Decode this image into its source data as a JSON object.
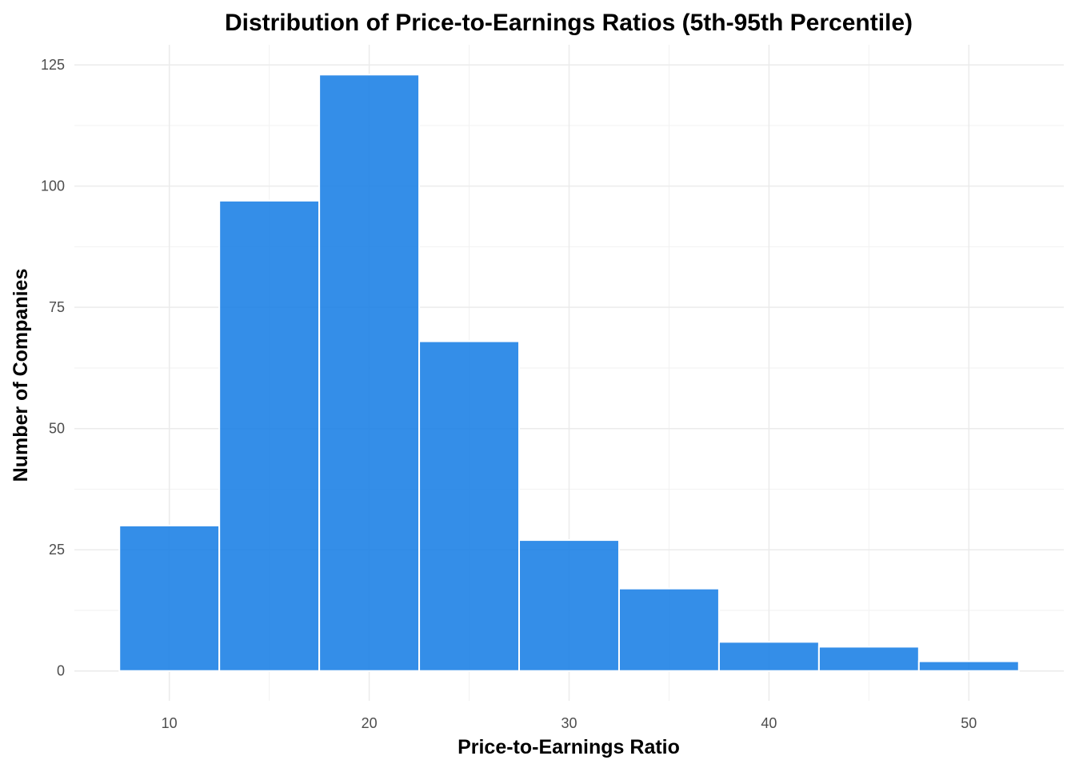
{
  "chart_data": {
    "type": "bar",
    "title": "Distribution of Price-to-Earnings Ratios (5th-95th Percentile)",
    "xlabel": "Price-to-Earnings Ratio",
    "ylabel": "Number of Companies",
    "bin_width": 5,
    "bin_centers": [
      10,
      15,
      20,
      25,
      30,
      35,
      40,
      45,
      50
    ],
    "values": [
      30,
      97,
      123,
      68,
      27,
      17,
      6,
      5,
      2
    ],
    "xlim": [
      5.25,
      54.75
    ],
    "ylim": [
      -6.15,
      129.15
    ],
    "x_ticks": [
      10,
      20,
      30,
      40,
      50
    ],
    "y_ticks": [
      0,
      25,
      50,
      75,
      100,
      125
    ],
    "grid": true,
    "bar_color": "#1E82E6"
  }
}
